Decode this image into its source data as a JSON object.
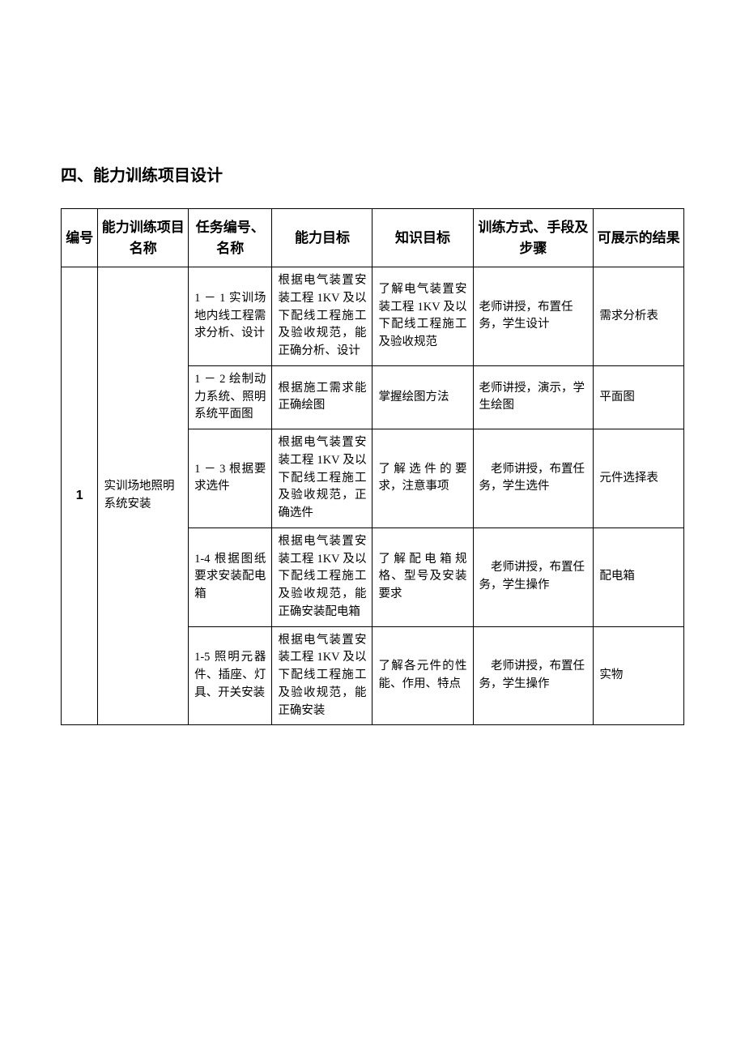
{
  "title": "四、能力训练项目设计",
  "table": {
    "headers": {
      "num": "编号",
      "proj": "能力训练项目名称",
      "task": "任务编号、名称",
      "ability": "能力目标",
      "knowledge": "知识目标",
      "method": "训练方式、手段及步骤",
      "result": "可展示的结果"
    },
    "group": {
      "num": "1",
      "proj": "实训场地照明系统安装",
      "rows": [
        {
          "task": "1 － 1 实训场地内线工程需求分析、设计",
          "ability": "根据电气装置安装工程 1KV 及以下配线工程施工及验收规范，能正确分析、设计",
          "knowledge": "了解电气装置安装工程 1KV 及以下配线工程施工及验收规范",
          "method": "老师讲授，布置任务，学生设计",
          "result": "需求分析表"
        },
        {
          "task": "1 － 2 绘制动力系统、照明系统平面图",
          "ability": "根据施工需求能正确绘图",
          "knowledge": "掌握绘图方法",
          "method": "老师讲授，演示，学生绘图",
          "result": "平面图"
        },
        {
          "task": "1 － 3 根据要求选件",
          "ability": "根据电气装置安装工程 1KV 及以下配线工程施工及验收规范，正确选件",
          "knowledge": "了解选件的要求，注意事项",
          "method": "　老师讲授，布置任务，学生选件",
          "result": "元件选择表"
        },
        {
          "task": "1-4 根据图纸要求安装配电箱",
          "ability": "根据电气装置安装工程 1KV 及以下配线工程施工及验收规范，能正确安装配电箱",
          "knowledge": "了解配电箱规格、型号及安装要求",
          "method": "　老师讲授，布置任务，学生操作",
          "result": "配电箱"
        },
        {
          "task": "1-5 照明元器件、插座、灯具、开关安装",
          "ability": "根据电气装置安装工程 1KV 及以下配线工程施工及验收规范，能正确安装",
          "knowledge": "了解各元件的性能、作用、特点",
          "method": "　老师讲授，布置任务，学生操作",
          "result": "实物"
        }
      ]
    }
  },
  "styles": {
    "background_color": "#ffffff",
    "border_color": "#000000",
    "title_fontsize": 20,
    "header_fontsize": 17,
    "cell_fontsize": 14.5
  }
}
